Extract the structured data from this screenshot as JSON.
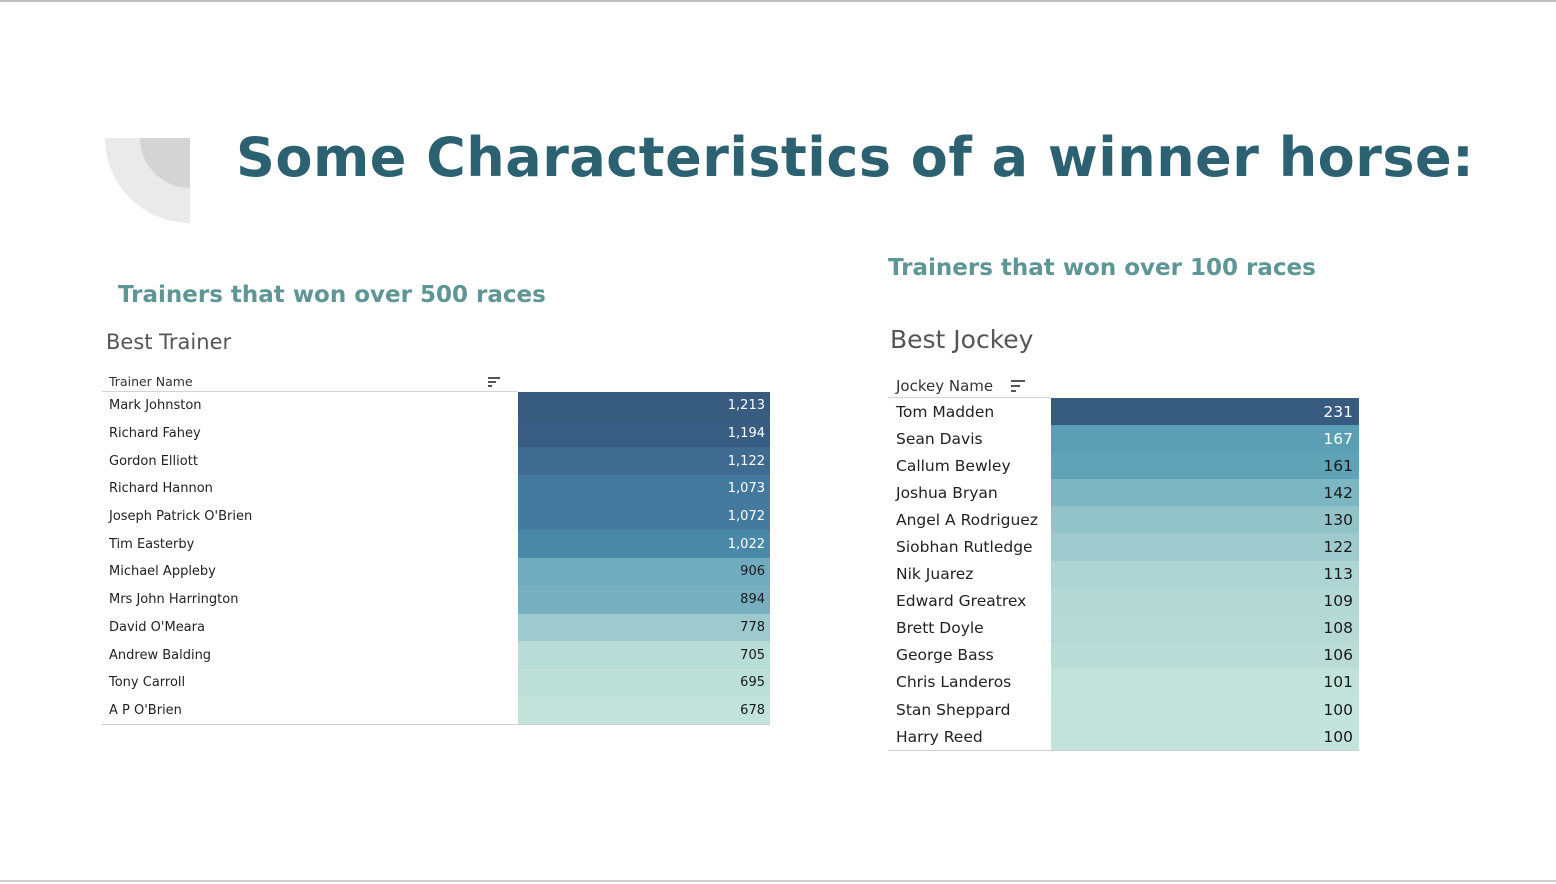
{
  "slide": {
    "title": "Some Characteristics of a winner horse:"
  },
  "left_panel": {
    "subtitle": "Trainers that won over 500 races",
    "sheet_title": "Best Trainer",
    "column_header": "Trainer Name",
    "rows": [
      {
        "name": "Mark Johnston",
        "value": "1,213",
        "color": "#385b80",
        "text_color": "#ffffff"
      },
      {
        "name": "Richard Fahey",
        "value": "1,194",
        "color": "#395d82",
        "text_color": "#ffffff"
      },
      {
        "name": "Gordon Elliott",
        "value": "1,122",
        "color": "#3e6b8f",
        "text_color": "#ffffff"
      },
      {
        "name": "Richard Hannon",
        "value": "1,073",
        "color": "#44799e",
        "text_color": "#ffffff"
      },
      {
        "name": "Joseph Patrick O'Brien",
        "value": "1,072",
        "color": "#457a9f",
        "text_color": "#ffffff"
      },
      {
        "name": "Tim Easterby",
        "value": "1,022",
        "color": "#4a88a8",
        "text_color": "#ffffff"
      },
      {
        "name": "Michael Appleby",
        "value": "906",
        "color": "#71abbe",
        "text_color": "#1a1a1a"
      },
      {
        "name": "Mrs John Harrington",
        "value": "894",
        "color": "#75afc0",
        "text_color": "#1a1a1a"
      },
      {
        "name": "David O'Meara",
        "value": "778",
        "color": "#9ecacd",
        "text_color": "#1a1a1a"
      },
      {
        "name": "Andrew Balding",
        "value": "705",
        "color": "#b8dcd6",
        "text_color": "#1a1a1a"
      },
      {
        "name": "Tony Carroll",
        "value": "695",
        "color": "#bcdfd8",
        "text_color": "#1a1a1a"
      },
      {
        "name": "A P O'Brien",
        "value": "678",
        "color": "#c1e3da",
        "text_color": "#1a1a1a"
      }
    ]
  },
  "right_panel": {
    "subtitle": "Trainers that won over 100 races",
    "sheet_title": "Best Jockey",
    "column_header": "Jockey Name",
    "rows": [
      {
        "name": "Tom Madden",
        "value": "231",
        "color": "#385b80",
        "text_color": "#ffffff"
      },
      {
        "name": "Sean Davis",
        "value": "167",
        "color": "#5a9fb4",
        "text_color": "#ffffff"
      },
      {
        "name": "Callum Bewley",
        "value": "161",
        "color": "#5ea3b6",
        "text_color": "#1a1a1a"
      },
      {
        "name": "Joshua Bryan",
        "value": "142",
        "color": "#7db6c3",
        "text_color": "#1a1a1a"
      },
      {
        "name": "Angel A Rodriguez",
        "value": "130",
        "color": "#92c3c9",
        "text_color": "#1a1a1a"
      },
      {
        "name": "Siobhan Rutledge",
        "value": "122",
        "color": "#9fcacd",
        "text_color": "#1a1a1a"
      },
      {
        "name": "Nik Juarez",
        "value": "113",
        "color": "#add5d3",
        "text_color": "#1a1a1a"
      },
      {
        "name": "Edward Greatrex",
        "value": "109",
        "color": "#b4d9d5",
        "text_color": "#1a1a1a"
      },
      {
        "name": "Brett Doyle",
        "value": "108",
        "color": "#b5dad6",
        "text_color": "#1a1a1a"
      },
      {
        "name": "George Bass",
        "value": "106",
        "color": "#b9dcd7",
        "text_color": "#1a1a1a"
      },
      {
        "name": "Chris Landeros",
        "value": "101",
        "color": "#c1e3da",
        "text_color": "#1a1a1a"
      },
      {
        "name": "Stan Sheppard",
        "value": "100",
        "color": "#c3e4db",
        "text_color": "#1a1a1a"
      },
      {
        "name": "Harry Reed",
        "value": "100",
        "color": "#c3e4db",
        "text_color": "#1a1a1a"
      }
    ]
  }
}
